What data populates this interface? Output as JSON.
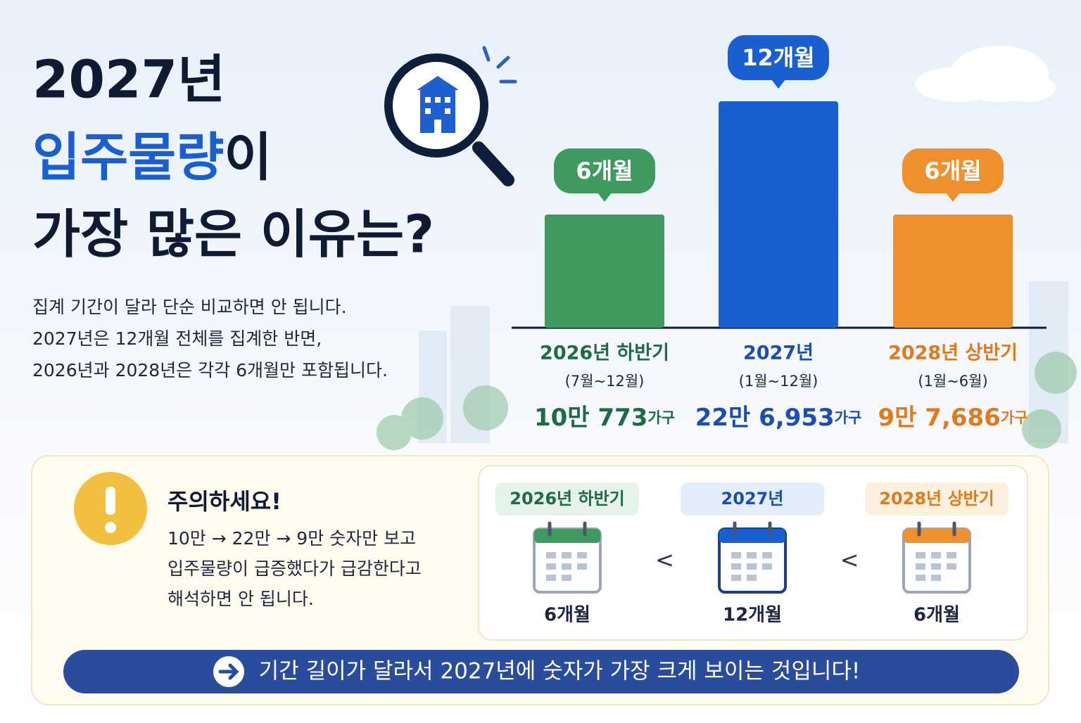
{
  "title": {
    "line1": "2027년",
    "highlight": "입주물량",
    "line2_rest": "이",
    "line3": "가장 많은 이유는?"
  },
  "description": [
    "집계 기간이 달라 단순 비교하면 안 됩니다.",
    "2027년은 12개월 전체를 집계한 반면,",
    "2026년과 2028년은 각각 6개월만 포함됩니다."
  ],
  "periods": [
    {
      "name": "2026년 하반기",
      "range": "(7월~12월)",
      "months": {
        "value": 6,
        "label": "6개월"
      },
      "households": "10만 773",
      "unit": "가구",
      "color": "#3f9a5f",
      "text_color": "#1f6b45",
      "pill_bg": "#e6f3ea"
    },
    {
      "name": "2027년",
      "range": "(1월~12월)",
      "months": {
        "value": 12,
        "label": "12개월"
      },
      "households": "22만 6,953",
      "unit": "가구",
      "color": "#1a5fd0",
      "text_color": "#1b4fae",
      "pill_bg": "#e3eefa"
    },
    {
      "name": "2028년 상반기",
      "range": "(1월~6월)",
      "months": {
        "value": 6,
        "label": "6개월"
      },
      "households": "9만 7,686",
      "unit": "가구",
      "color": "#ef8f2e",
      "text_color": "#e07a1c",
      "pill_bg": "#fdf0de"
    }
  ],
  "warning": {
    "title": "주의하세요!",
    "lines": [
      "10만 → 22만 → 9만 숫자만 보고",
      "입주물량이 급증했다가 급감한다고",
      "해석하면 안 됩니다."
    ]
  },
  "comparator": "<",
  "conclusion": "기간 길이가 달라서 2027년에 숫자가 가장 크게 보이는 것입니다!"
}
